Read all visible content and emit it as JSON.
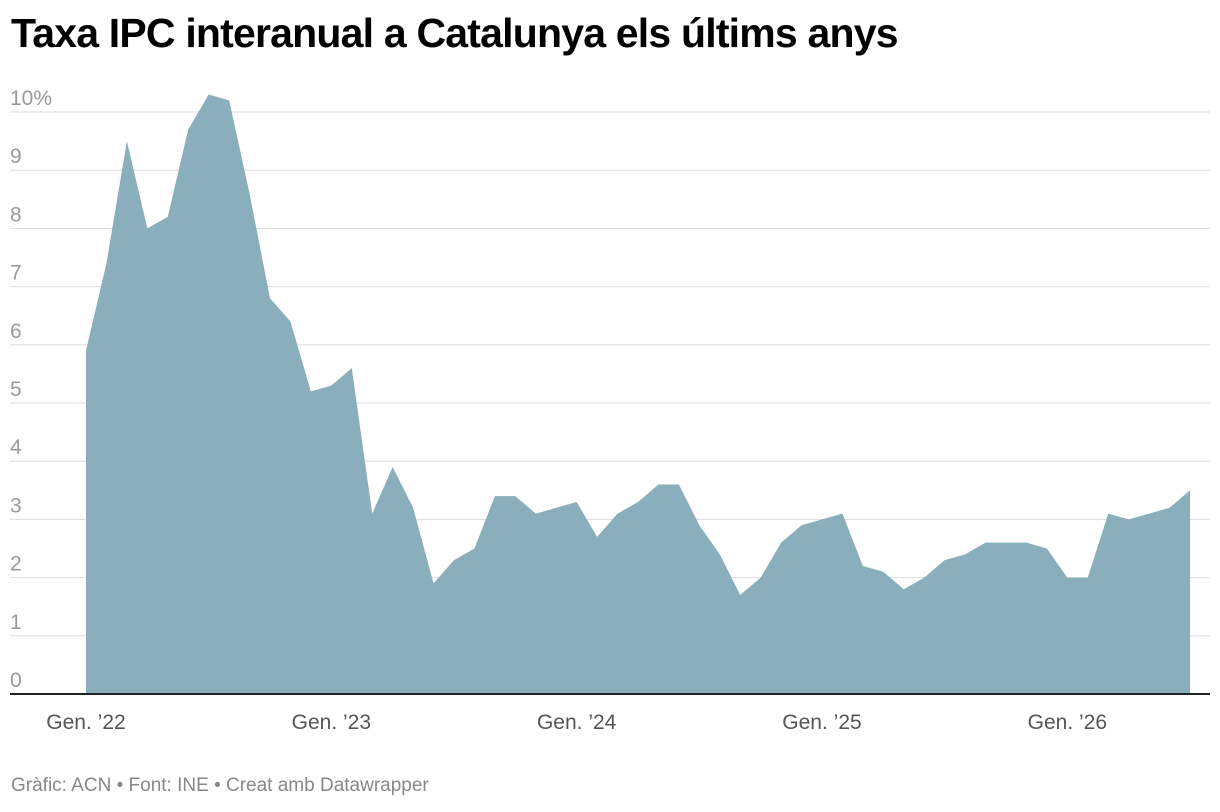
{
  "title": "Taxa IPC interanual a Catalunya els últims anys",
  "footer": {
    "chart_credit": "Gràfic: ACN",
    "separator": "•",
    "source": "Font: INE",
    "tool": "Creat amb Datawrapper"
  },
  "colors": {
    "area_fill": "#8aaebb",
    "gridline": "#dddddd",
    "baseline": "#222222"
  },
  "chart_data": {
    "type": "area",
    "title": "Taxa IPC interanual a Catalunya els últims anys",
    "xlabel": "",
    "ylabel": "",
    "ylim": [
      0,
      10
    ],
    "y_ticks": [
      {
        "value": 10,
        "label": "10%"
      },
      {
        "value": 9,
        "label": "9"
      },
      {
        "value": 8,
        "label": "8"
      },
      {
        "value": 7,
        "label": "7"
      },
      {
        "value": 6,
        "label": "6"
      },
      {
        "value": 5,
        "label": "5"
      },
      {
        "value": 4,
        "label": "4"
      },
      {
        "value": 3,
        "label": "3"
      },
      {
        "value": 2,
        "label": "2"
      },
      {
        "value": 1,
        "label": "1"
      },
      {
        "value": 0,
        "label": "0"
      }
    ],
    "x_ticks": [
      {
        "index": 0,
        "label": "Gen. ’22"
      },
      {
        "index": 12,
        "label": "Gen. ’23"
      },
      {
        "index": 24,
        "label": "Gen. ’24"
      },
      {
        "index": 36,
        "label": "Gen. ’25"
      },
      {
        "index": 48,
        "label": "Gen. ’26"
      }
    ],
    "grid": true,
    "legend": "none",
    "values": [
      5.9,
      7.4,
      9.5,
      8.0,
      8.2,
      9.7,
      10.3,
      10.2,
      8.6,
      6.8,
      6.4,
      5.2,
      5.3,
      5.6,
      3.1,
      3.9,
      3.2,
      1.9,
      2.3,
      2.5,
      3.4,
      3.4,
      3.1,
      3.2,
      3.3,
      2.7,
      3.1,
      3.3,
      3.6,
      3.6,
      2.9,
      2.4,
      1.7,
      2.0,
      2.6,
      2.9,
      3.0,
      3.1,
      2.2,
      2.1,
      1.8,
      2.0,
      2.3,
      2.4,
      2.6,
      2.6,
      2.6,
      2.5,
      2.0,
      2.0,
      3.1,
      3.0,
      3.1,
      3.2,
      3.5
    ]
  }
}
